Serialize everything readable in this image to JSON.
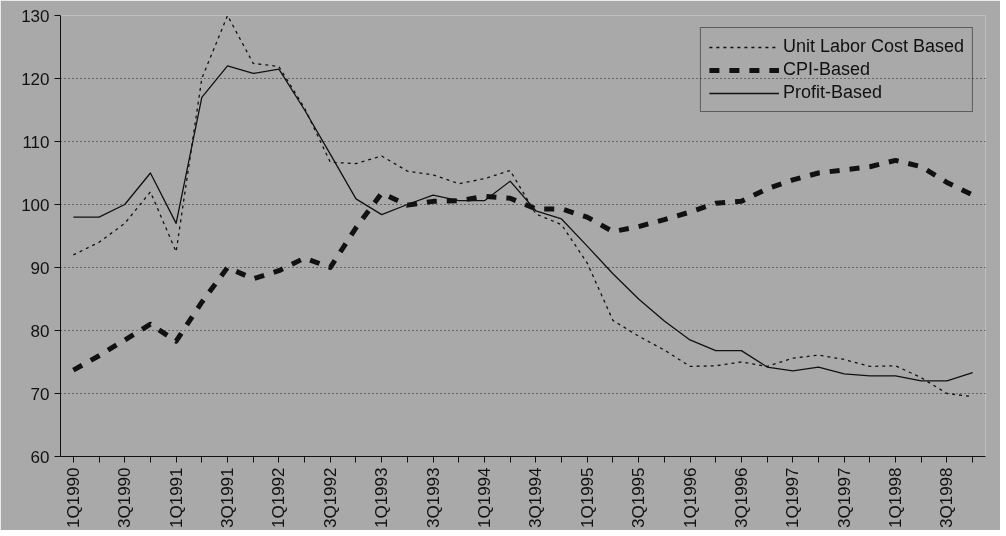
{
  "chart_data": {
    "type": "line",
    "categories": [
      "1Q1990",
      null,
      "3Q1990",
      null,
      "1Q1991",
      null,
      "3Q1991",
      null,
      "1Q1992",
      null,
      "3Q1992",
      null,
      "1Q1993",
      null,
      "3Q1993",
      null,
      "1Q1994",
      null,
      "3Q1994",
      null,
      "1Q1995",
      null,
      "3Q1995",
      null,
      "1Q1996",
      null,
      "3Q1996",
      null,
      "1Q1997",
      null,
      "3Q1997",
      null,
      "1Q1998",
      null,
      "3Q1998",
      null
    ],
    "series": [
      {
        "name": "Unit Labor Cost Based",
        "color": "#111111",
        "line_style": "dotted",
        "values": [
          92,
          94,
          97,
          102,
          92.5,
          120,
          130,
          122.4,
          121.9,
          115.3,
          106.7,
          106.5,
          107.7,
          105.3,
          104.7,
          103.3,
          104.1,
          105.4,
          98.5,
          96.8,
          90.7,
          81.6,
          79.1,
          76.9,
          74.3,
          74.4,
          75,
          74.3,
          75.6,
          76.1,
          75.4,
          74.3,
          74.4,
          72.5,
          70,
          69.5
        ]
      },
      {
        "name": "CPI-Based",
        "color": "#111111",
        "line_style": "dashed",
        "values": [
          73.7,
          76,
          78.5,
          81,
          78.3,
          84.5,
          90,
          88.2,
          89.5,
          91.5,
          90,
          96.3,
          101.8,
          99.9,
          100.5,
          100.6,
          101.3,
          101,
          99.3,
          99.3,
          98,
          95.7,
          96.5,
          97.6,
          98.8,
          100.2,
          100.5,
          102.5,
          103.9,
          105,
          105.5,
          106,
          107,
          106,
          103.5,
          101.5
        ]
      },
      {
        "name": "Profit-Based",
        "color": "#111111",
        "line_style": "solid",
        "values": [
          98,
          98,
          100,
          105,
          97,
          117,
          122,
          120.8,
          121.5,
          115,
          108,
          100.9,
          98.4,
          100,
          101.5,
          100.6,
          100.6,
          103.7,
          99,
          97.7,
          93.4,
          89,
          85,
          81.5,
          78.5,
          76.8,
          76.8,
          74.2,
          73.6,
          74.2,
          73.1,
          72.8,
          72.8,
          72,
          72,
          73.3
        ]
      }
    ],
    "ylim": [
      60,
      130
    ],
    "yticks": [
      60,
      70,
      80,
      90,
      100,
      110,
      120,
      130
    ],
    "grid": "y",
    "legend": "top right"
  }
}
